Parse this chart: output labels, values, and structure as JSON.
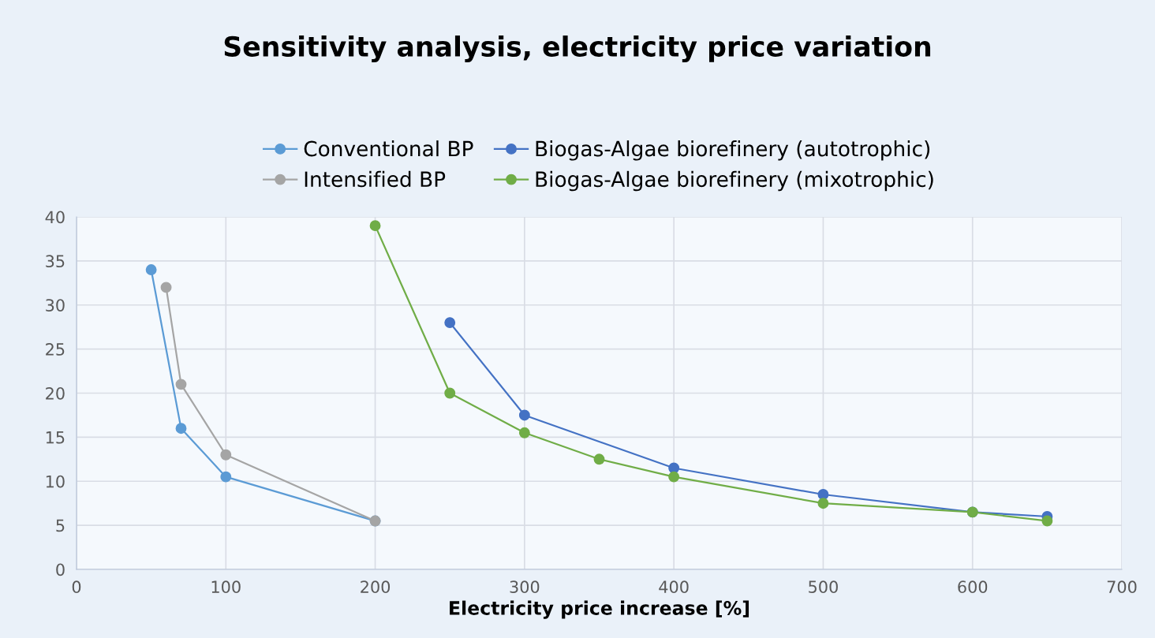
{
  "chart_data": {
    "type": "line",
    "title": "Sensitivity analysis, electricity price variation",
    "xlabel": "Electricity price increase [%]",
    "series": [
      {
        "name": "Conventional BP",
        "color": "#5b9bd5",
        "x": [
          50,
          70,
          100,
          200
        ],
        "values": [
          34,
          16,
          10.5,
          5.5
        ]
      },
      {
        "name": "Intensified BP",
        "color": "#a5a5a5",
        "x": [
          60,
          70,
          100,
          200
        ],
        "values": [
          32,
          21,
          13,
          5.5
        ]
      },
      {
        "name": "Biogas-Algae biorefinery (autotrophic)",
        "color": "#4472c4",
        "x": [
          250,
          300,
          400,
          500,
          600,
          650
        ],
        "values": [
          28,
          17.5,
          11.5,
          8.5,
          6.5,
          6
        ]
      },
      {
        "name": "Biogas-Algae biorefinery (mixotrophic)",
        "color": "#70ad47",
        "x": [
          200,
          250,
          300,
          350,
          400,
          500,
          600,
          650
        ],
        "values": [
          39,
          20,
          15.5,
          12.5,
          10.5,
          7.5,
          6.5,
          5.5
        ]
      }
    ],
    "xlim": [
      0,
      700
    ],
    "xticks": [
      0,
      100,
      200,
      300,
      400,
      500,
      600,
      700
    ],
    "ylim": [
      0,
      40
    ],
    "yticks": [
      0,
      5,
      10,
      15,
      20,
      25,
      30,
      35,
      40
    ],
    "grid": true,
    "legend": "top",
    "marker": "circle",
    "line_style": "solid"
  }
}
